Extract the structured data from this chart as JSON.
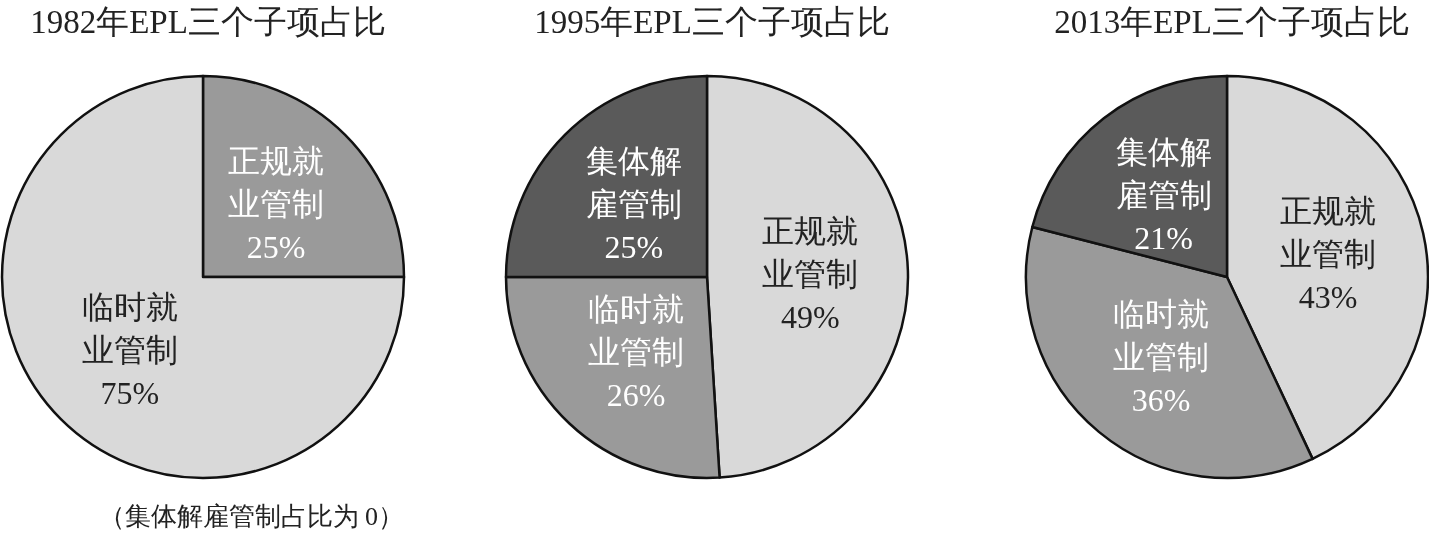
{
  "chart_data": [
    {
      "type": "pie",
      "title": "1982年EPL三个子项占比",
      "categories": [
        "正规就业管制",
        "临时就业管制"
      ],
      "values": [
        25,
        75
      ],
      "value_labels": [
        "25%",
        "75%"
      ],
      "colors": [
        "#9a9a9a",
        "#d9d9d9"
      ],
      "annotations": [
        "（集体解雇管制占比为 0）"
      ]
    },
    {
      "type": "pie",
      "title": "1995年EPL三个子项占比",
      "categories": [
        "正规就业管制",
        "临时就业管制",
        "集体解雇管制"
      ],
      "values": [
        49,
        26,
        25
      ],
      "value_labels": [
        "49%",
        "26%",
        "25%"
      ],
      "colors": [
        "#d9d9d9",
        "#9a9a9a",
        "#5a5a5a"
      ]
    },
    {
      "type": "pie",
      "title": "2013年EPL三个子项占比",
      "categories": [
        "正规就业管制",
        "临时就业管制",
        "集体解雇管制"
      ],
      "values": [
        43,
        36,
        21
      ],
      "value_labels": [
        "43%",
        "36%",
        "21%"
      ],
      "colors": [
        "#d9d9d9",
        "#9a9a9a",
        "#5a5a5a"
      ]
    }
  ]
}
